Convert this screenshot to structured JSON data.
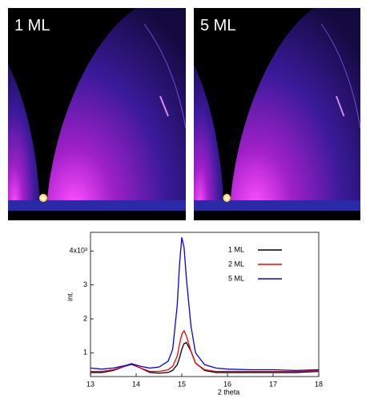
{
  "panels": [
    {
      "label": "1 ML"
    },
    {
      "label": "5 ML"
    }
  ],
  "chart_data": {
    "type": "line",
    "x": [
      13,
      13.25,
      13.5,
      13.75,
      13.9,
      14.1,
      14.3,
      14.5,
      14.7,
      14.8,
      14.9,
      14.95,
      15.0,
      15.05,
      15.1,
      15.2,
      15.3,
      15.5,
      15.75,
      16,
      16.5,
      17,
      17.5,
      18
    ],
    "series": [
      {
        "name": "1 ML",
        "color": "#000000",
        "values": [
          0.42,
          0.42,
          0.48,
          0.6,
          0.66,
          0.55,
          0.42,
          0.4,
          0.42,
          0.48,
          0.65,
          0.85,
          1.1,
          1.27,
          1.3,
          1.05,
          0.7,
          0.48,
          0.42,
          0.42,
          0.42,
          0.42,
          0.42,
          0.45
        ]
      },
      {
        "name": "2 ML",
        "color": "#ff0000",
        "values": [
          0.45,
          0.45,
          0.5,
          0.6,
          0.68,
          0.55,
          0.45,
          0.45,
          0.5,
          0.6,
          0.9,
          1.25,
          1.55,
          1.65,
          1.5,
          1.05,
          0.7,
          0.5,
          0.45,
          0.45,
          0.45,
          0.45,
          0.45,
          0.47
        ]
      },
      {
        "name": "5 ML",
        "color": "#0000ff",
        "values": [
          0.55,
          0.52,
          0.55,
          0.62,
          0.68,
          0.6,
          0.55,
          0.58,
          0.75,
          1.1,
          2.4,
          3.6,
          4.4,
          4.1,
          3.2,
          1.8,
          1.0,
          0.65,
          0.55,
          0.52,
          0.5,
          0.5,
          0.48,
          0.5
        ]
      }
    ],
    "xlim": [
      13,
      18
    ],
    "xticks": [
      13,
      14,
      15,
      16,
      17,
      18
    ],
    "ylim": [
      0.3,
      4.55
    ],
    "yticks": [
      1,
      2,
      3,
      {
        "value": 4,
        "label": "4x10³"
      }
    ],
    "xlabel": "2 theta",
    "ylabel": "int.",
    "legend": "upper right"
  }
}
